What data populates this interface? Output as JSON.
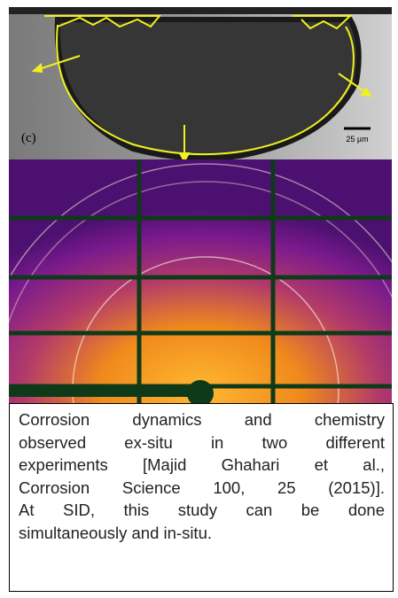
{
  "figure": {
    "panel_label": "(c)",
    "scale_bar": "25 µm"
  },
  "caption": {
    "lines": [
      "Corrosion dynamics and chemistry",
      "observed ex-situ in two different",
      "experiments [Majid Ghahari et al.,",
      "Corrosion Science 100, 25 (2015)].",
      "At SID, this study can be done",
      "simultaneously and in-situ."
    ]
  }
}
